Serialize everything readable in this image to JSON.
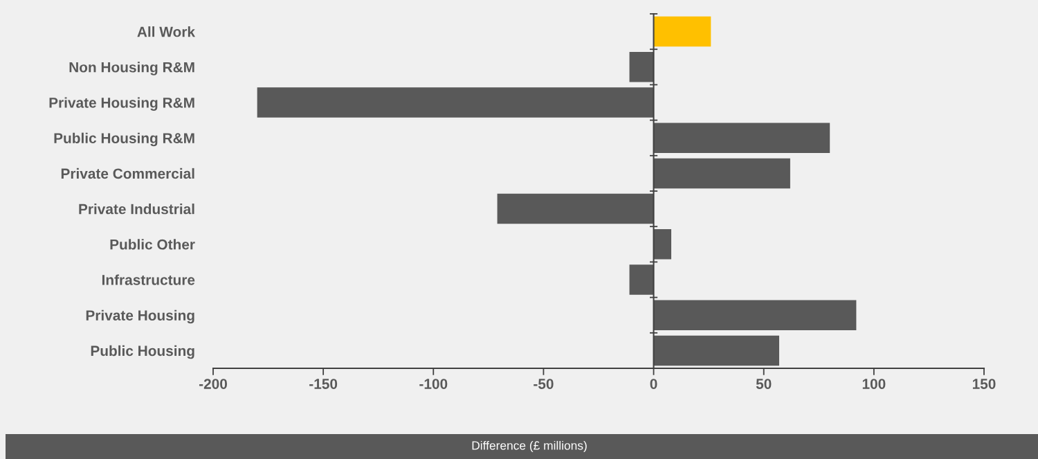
{
  "chart_data": {
    "type": "bar",
    "orientation": "horizontal",
    "xlabel": "Difference (£ millions)",
    "categories": [
      "All Work",
      "Non Housing R&M",
      "Private Housing R&M",
      "Public Housing R&M",
      "Private Commercial",
      "Private Industrial",
      "Public Other",
      "Infrastructure",
      "Private Housing",
      "Public Housing"
    ],
    "values": [
      26,
      -11,
      -180,
      80,
      62,
      -71,
      8,
      -11,
      92,
      57
    ],
    "colors": [
      "#ffc000",
      "#595959",
      "#595959",
      "#595959",
      "#595959",
      "#595959",
      "#595959",
      "#595959",
      "#595959",
      "#595959"
    ],
    "xlim": [
      -200,
      150
    ],
    "xticks": [
      -200,
      -150,
      -100,
      -50,
      0,
      50,
      100,
      150
    ]
  }
}
